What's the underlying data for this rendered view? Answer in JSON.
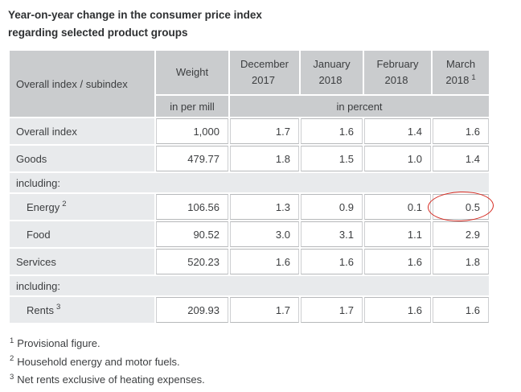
{
  "title": {
    "line1": "Year-on-year change in the consumer price index",
    "line2": "regarding selected product groups"
  },
  "table": {
    "header": {
      "row_label": "Overall index / subindex",
      "weight_label": "Weight",
      "months": [
        {
          "line1": "December",
          "line2": "2017",
          "sup": ""
        },
        {
          "line1": "January",
          "line2": "2018",
          "sup": ""
        },
        {
          "line1": "February",
          "line2": "2018",
          "sup": ""
        },
        {
          "line1": "March",
          "line2": "2018",
          "sup": "1"
        }
      ],
      "unit_weight": "in per mill",
      "unit_percent": "in percent"
    },
    "rows": [
      {
        "type": "data",
        "label": "Overall index",
        "sup": "",
        "weight": "1,000",
        "values": [
          "1.7",
          "1.6",
          "1.4",
          "1.6"
        ]
      },
      {
        "type": "data",
        "label": "Goods",
        "sup": "",
        "weight": "479.77",
        "values": [
          "1.8",
          "1.5",
          "1.0",
          "1.4"
        ]
      },
      {
        "type": "section",
        "label": "including:"
      },
      {
        "type": "data",
        "label": "Energy",
        "sup": "2",
        "weight": "106.56",
        "values": [
          "1.3",
          "0.9",
          "0.1",
          "0.5"
        ],
        "annotation": "red-circle-on-last-value"
      },
      {
        "type": "data",
        "label": "Food",
        "sup": "",
        "weight": "90.52",
        "values": [
          "3.0",
          "3.1",
          "1.1",
          "2.9"
        ]
      },
      {
        "type": "data",
        "label": "Services",
        "sup": "",
        "weight": "520.23",
        "values": [
          "1.6",
          "1.6",
          "1.6",
          "1.8"
        ]
      },
      {
        "type": "section",
        "label": "including:"
      },
      {
        "type": "data",
        "label": "Rents",
        "sup": "3",
        "weight": "209.93",
        "values": [
          "1.7",
          "1.7",
          "1.6",
          "1.6"
        ]
      }
    ]
  },
  "footnotes": [
    {
      "sup": "1",
      "text": "Provisional figure."
    },
    {
      "sup": "2",
      "text": "Household energy and motor fuels."
    },
    {
      "sup": "3",
      "text": "Net rents exclusive of heating expenses."
    }
  ],
  "annotation": {
    "shape": "ellipse",
    "color": "#d5281f",
    "target": "Energy March 2018 value 0.5"
  },
  "colors": {
    "header_bg": "#caccce",
    "label_bg": "#e8eaec",
    "cell_border": "#b6b8ba",
    "text": "#3c3e40",
    "annotation_red": "#d5281f"
  },
  "chart_data": {
    "type": "table",
    "title": "Year-on-year change in the consumer price index regarding selected product groups",
    "columns": [
      "Overall index / subindex",
      "Weight (in per mill)",
      "December 2017 (%)",
      "January 2018 (%)",
      "February 2018 (%)",
      "March 2018 (%, provisional)"
    ],
    "rows": [
      [
        "Overall index",
        1000,
        1.7,
        1.6,
        1.4,
        1.6
      ],
      [
        "Goods",
        479.77,
        1.8,
        1.5,
        1.0,
        1.4
      ],
      [
        "Energy (Household energy and motor fuels)",
        106.56,
        1.3,
        0.9,
        0.1,
        0.5
      ],
      [
        "Food",
        90.52,
        3.0,
        3.1,
        1.1,
        2.9
      ],
      [
        "Services",
        520.23,
        1.6,
        1.6,
        1.6,
        1.8
      ],
      [
        "Rents (Net rents exclusive of heating expenses)",
        209.93,
        1.7,
        1.7,
        1.6,
        1.6
      ]
    ],
    "highlighted_value": {
      "row": "Energy",
      "column": "March 2018",
      "value": 0.5
    }
  }
}
